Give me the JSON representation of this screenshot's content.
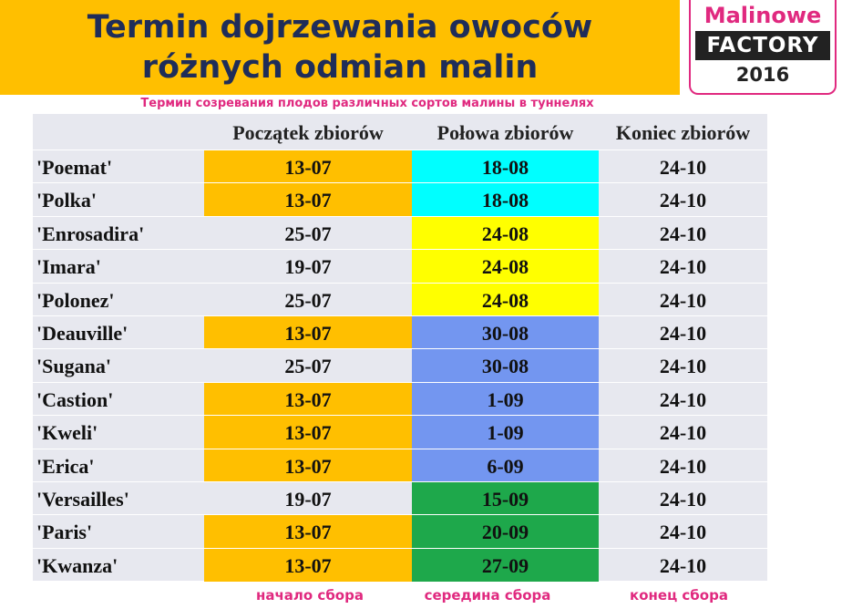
{
  "title": {
    "line1": "Termin dojrzewania owoców",
    "line2": "różnych odmian malin"
  },
  "logo": {
    "brand": "Malinowe",
    "factory": "FACTORY",
    "year": "2016"
  },
  "subtitle": "Термин созревания плодов различных сортов малины в туннелях",
  "colors": {
    "orange": "#ffbf00",
    "cyan": "#00ffff",
    "yellow": "#ffff00",
    "blue": "#7396f0",
    "green": "#1ea84b",
    "gray": "#e7e8ef",
    "pink": "#e0297f",
    "navy": "#1f2d59"
  },
  "columns": [
    "Początek zbiorów",
    "Połowa zbiorów",
    "Koniec zbiorów"
  ],
  "rows": [
    {
      "name": "'Poemat'",
      "start": "13-07",
      "mid": "18-08",
      "end": "24-10",
      "start_color": "orange",
      "mid_color": "cyan"
    },
    {
      "name": "'Polka'",
      "start": "13-07",
      "mid": "18-08",
      "end": "24-10",
      "start_color": "orange",
      "mid_color": "cyan"
    },
    {
      "name": "'Enrosadira'",
      "start": "25-07",
      "mid": "24-08",
      "end": "24-10",
      "start_color": "gray",
      "mid_color": "yellow"
    },
    {
      "name": "'Imara'",
      "start": "19-07",
      "mid": "24-08",
      "end": "24-10",
      "start_color": "gray",
      "mid_color": "yellow"
    },
    {
      "name": "'Polonez'",
      "start": "25-07",
      "mid": "24-08",
      "end": "24-10",
      "start_color": "gray",
      "mid_color": "yellow"
    },
    {
      "name": "'Deauville'",
      "start": "13-07",
      "mid": "30-08",
      "end": "24-10",
      "start_color": "orange",
      "mid_color": "blue"
    },
    {
      "name": "'Sugana'",
      "start": "25-07",
      "mid": "30-08",
      "end": "24-10",
      "start_color": "gray",
      "mid_color": "blue"
    },
    {
      "name": "'Castion'",
      "start": "13-07",
      "mid": "1-09",
      "end": "24-10",
      "start_color": "orange",
      "mid_color": "blue"
    },
    {
      "name": "'Kweli'",
      "start": "13-07",
      "mid": "1-09",
      "end": "24-10",
      "start_color": "orange",
      "mid_color": "blue"
    },
    {
      "name": "'Erica'",
      "start": "13-07",
      "mid": "6-09",
      "end": "24-10",
      "start_color": "orange",
      "mid_color": "blue"
    },
    {
      "name": "'Versailles'",
      "start": "19-07",
      "mid": "15-09",
      "end": "24-10",
      "start_color": "gray",
      "mid_color": "green"
    },
    {
      "name": "'Paris'",
      "start": "13-07",
      "mid": "20-09",
      "end": "24-10",
      "start_color": "orange",
      "mid_color": "green"
    },
    {
      "name": "'Kwanza'",
      "start": "13-07",
      "mid": "27-09",
      "end": "24-10",
      "start_color": "orange",
      "mid_color": "green"
    }
  ],
  "legend": [
    "начало сбора",
    "середина сбора",
    "конец сбора"
  ]
}
